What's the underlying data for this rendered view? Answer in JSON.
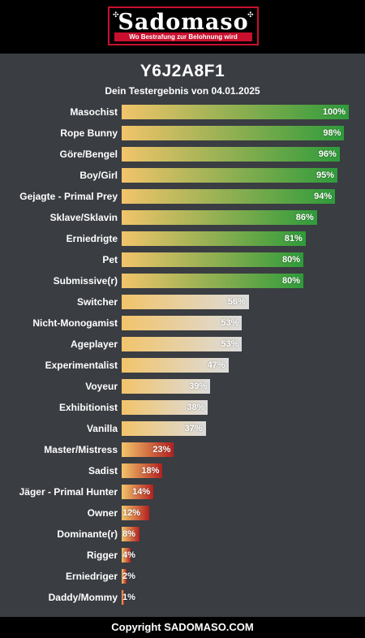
{
  "logo": {
    "word": "Sadomaso",
    "tagline": "Wo Bestrafung zur Belohnung wird",
    "icon": "knot-icon"
  },
  "header": {
    "title": "Y6J2A8F1",
    "subtitle": "Dein Testergebnis von 04.01.2025"
  },
  "footer": {
    "text": "Copyright SADOMASO.COM"
  },
  "colors": {
    "background": "#3a3d42",
    "bar_start": "#f2c46a",
    "high": "#2e9b3a",
    "mid": "#dcdcdc",
    "low": "#b32020"
  },
  "chart_data": {
    "type": "bar",
    "orientation": "horizontal",
    "categories": [
      "Masochist",
      "Rope Bunny",
      "Göre/Bengel",
      "Boy/Girl",
      "Gejagte - Primal Prey",
      "Sklave/Sklavin",
      "Erniedrigte",
      "Pet",
      "Submissive(r)",
      "Switcher",
      "Nicht-Monogamist",
      "Ageplayer",
      "Experimentalist",
      "Voyeur",
      "Exhibitionist",
      "Vanilla",
      "Master/Mistress",
      "Sadist",
      "Jäger - Primal Hunter",
      "Owner",
      "Dominante(r)",
      "Rigger",
      "Erniedriger",
      "Daddy/Mommy"
    ],
    "values": [
      100,
      98,
      96,
      95,
      94,
      86,
      81,
      80,
      80,
      56,
      53,
      53,
      47,
      39,
      38,
      37,
      23,
      18,
      14,
      12,
      8,
      4,
      2,
      1
    ],
    "value_labels": [
      "100%",
      "98%",
      "96%",
      "95%",
      "94%",
      "86%",
      "81%",
      "80%",
      "80%",
      "56%",
      "53%",
      "53%",
      "47%",
      "39%",
      "38%",
      "37%",
      "23%",
      "18%",
      "14%",
      "12%",
      "8%",
      "4%",
      "2%",
      "1%"
    ],
    "xlim": [
      0,
      100
    ],
    "unit": "%"
  }
}
